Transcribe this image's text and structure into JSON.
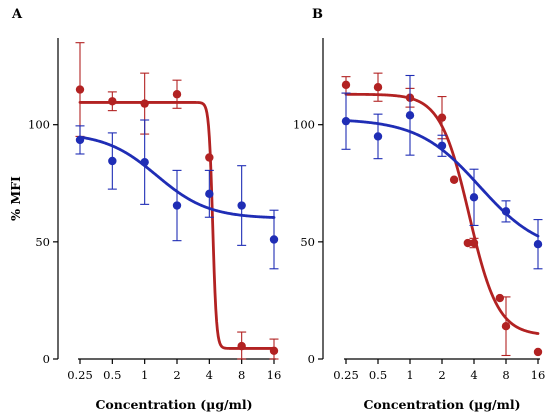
{
  "chart_data": [
    {
      "type": "scatter",
      "panel_label": "A",
      "xlabel": "Concentration (µg/ml)",
      "ylabel": "% MFI",
      "x_scale": "log2",
      "x_ticks": [
        "0.25",
        "0.5",
        "1",
        "2",
        "4",
        "8",
        "16"
      ],
      "x_values": [
        0.25,
        0.5,
        1,
        2,
        4,
        8,
        16
      ],
      "y_ticks": [
        "0",
        "50",
        "100"
      ],
      "y_tick_values": [
        0,
        50,
        100
      ],
      "ylim": [
        0,
        137
      ],
      "grid": false,
      "series": [
        {
          "color": "#b22222",
          "points": [
            {
              "x": 0.25,
              "y": 115,
              "err": 20
            },
            {
              "x": 0.5,
              "y": 110,
              "err": 4
            },
            {
              "x": 1,
              "y": 109,
              "err": 13
            },
            {
              "x": 2,
              "y": 113,
              "err": 6
            },
            {
              "x": 4,
              "y": 86,
              "err": 0
            },
            {
              "x": 8,
              "y": 5.5,
              "err": 6
            },
            {
              "x": 16,
              "y": 3.5,
              "err": 5
            }
          ],
          "fit": {
            "top": 109.5,
            "bottom": 4.5,
            "ec50": 4.3,
            "hill": -25
          }
        },
        {
          "color": "#1f2db5",
          "points": [
            {
              "x": 0.25,
              "y": 93.5,
              "err": 6
            },
            {
              "x": 0.5,
              "y": 84.5,
              "err": 12
            },
            {
              "x": 1,
              "y": 84,
              "err": 18
            },
            {
              "x": 2,
              "y": 65.5,
              "err": 15
            },
            {
              "x": 4,
              "y": 70.5,
              "err": 10
            },
            {
              "x": 8,
              "y": 65.5,
              "err": 17
            },
            {
              "x": 16,
              "y": 51,
              "err": 12.5
            }
          ],
          "fit": {
            "top": 96.5,
            "bottom": 60,
            "ec50": 1.3,
            "hill": -1.8
          }
        }
      ]
    },
    {
      "type": "scatter",
      "panel_label": "B",
      "xlabel": "Concentration (µg/ml)",
      "ylabel": "",
      "x_scale": "log2",
      "x_ticks": [
        "0.25",
        "0.5",
        "1",
        "2",
        "4",
        "8",
        "16"
      ],
      "x_values": [
        0.25,
        0.5,
        1,
        2,
        4,
        8,
        16
      ],
      "y_ticks": [
        "0",
        "50",
        "100"
      ],
      "y_tick_values": [
        0,
        50,
        100
      ],
      "ylim": [
        0,
        137
      ],
      "grid": false,
      "series": [
        {
          "color": "#b22222",
          "points": [
            {
              "x": 0.25,
              "y": 117,
              "err": 3.5
            },
            {
              "x": 0.5,
              "y": 116,
              "err": 6
            },
            {
              "x": 1,
              "y": 111.5,
              "err": 4
            },
            {
              "x": 2,
              "y": 103,
              "err": 9
            },
            {
              "x": 2.6,
              "y": 76.5,
              "err": 0
            },
            {
              "x": 3.5,
              "y": 49.5,
              "err": 0
            },
            {
              "x": 4,
              "y": 49.5,
              "err": 2
            },
            {
              "x": 7,
              "y": 26,
              "err": 0
            },
            {
              "x": 8,
              "y": 14,
              "err": 12.5
            },
            {
              "x": 16,
              "y": 3,
              "err": 0
            }
          ],
          "fit": {
            "top": 113,
            "bottom": 10,
            "ec50": 3.6,
            "hill": -3.2
          }
        },
        {
          "color": "#1f2db5",
          "points": [
            {
              "x": 0.25,
              "y": 101.5,
              "err": 12
            },
            {
              "x": 0.5,
              "y": 95,
              "err": 9.5
            },
            {
              "x": 1,
              "y": 104,
              "err": 17
            },
            {
              "x": 2,
              "y": 91,
              "err": 4.5
            },
            {
              "x": 4,
              "y": 69,
              "err": 12
            },
            {
              "x": 8,
              "y": 63,
              "err": 4.5
            },
            {
              "x": 16,
              "y": 49,
              "err": 10.5
            }
          ],
          "fit": {
            "top": 102.5,
            "bottom": 45,
            "ec50": 4.5,
            "hill": -1.5
          }
        }
      ]
    }
  ]
}
